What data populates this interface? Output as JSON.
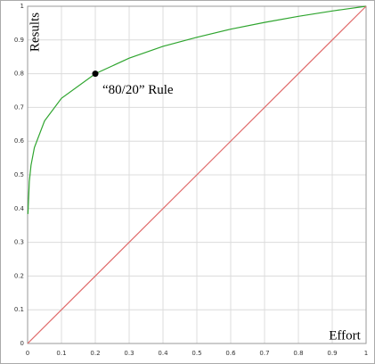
{
  "chart_data": {
    "type": "line",
    "xlabel": "Effort",
    "ylabel": "Results",
    "xlim": [
      0,
      1
    ],
    "ylim": [
      0,
      1
    ],
    "xticks": [
      0,
      0.1,
      0.2,
      0.3,
      0.4,
      0.5,
      0.6,
      0.7,
      0.8,
      0.9,
      1
    ],
    "yticks": [
      0,
      0.1,
      0.2,
      0.3,
      0.4,
      0.5,
      0.6,
      0.7,
      0.8,
      0.9,
      1
    ],
    "grid": true,
    "series": [
      {
        "color": "#2fa52f",
        "x": [
          0.001,
          0.005,
          0.01,
          0.02,
          0.05,
          0.1,
          0.2,
          0.3,
          0.4,
          0.5,
          0.6,
          0.7,
          0.8,
          0.9,
          1
        ],
        "values": [
          0.384,
          0.48,
          0.528,
          0.581,
          0.66,
          0.727,
          0.8,
          0.846,
          0.881,
          0.908,
          0.932,
          0.952,
          0.97,
          0.986,
          1
        ]
      },
      {
        "color": "#e06a6a",
        "x": [
          0,
          1
        ],
        "values": [
          0,
          1
        ]
      }
    ],
    "annotation": {
      "text": "“80/20” Rule",
      "x": 0.2,
      "y": 0.8
    }
  }
}
